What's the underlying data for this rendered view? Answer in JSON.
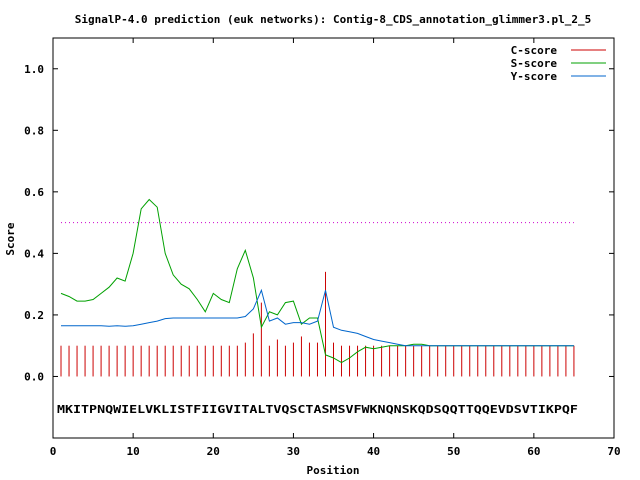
{
  "chart_data": {
    "type": "line",
    "title": "SignalP-4.0 prediction (euk networks): Contig-8_CDS_annotation_glimmer3.pl_2_5",
    "xlabel": "Position",
    "ylabel": "Score",
    "xlim": [
      0,
      70
    ],
    "ylim": [
      -0.2,
      1.1
    ],
    "xticks": [
      0,
      10,
      20,
      30,
      40,
      50,
      60,
      70
    ],
    "xtick_labels": [
      "0",
      "10",
      "20",
      "30",
      "40",
      "50",
      "60",
      "70"
    ],
    "yticks": [
      0.0,
      0.2,
      0.4,
      0.6,
      0.8,
      1.0
    ],
    "ytick_labels": [
      "0.0",
      "0.2",
      "0.4",
      "0.6",
      "0.8",
      "1.0"
    ],
    "grid": false,
    "legend_position": "top-right",
    "threshold": 0.5,
    "sequence": "MKITPNQWIELVKLISTFIIGVITALTVQSCTASMSVFWKNQNSKQDSQQTTQQEVDSVTIKPQF",
    "x": [
      1,
      2,
      3,
      4,
      5,
      6,
      7,
      8,
      9,
      10,
      11,
      12,
      13,
      14,
      15,
      16,
      17,
      18,
      19,
      20,
      21,
      22,
      23,
      24,
      25,
      26,
      27,
      28,
      29,
      30,
      31,
      32,
      33,
      34,
      35,
      36,
      37,
      38,
      39,
      40,
      41,
      42,
      43,
      44,
      45,
      46,
      47,
      48,
      49,
      50,
      51,
      52,
      53,
      54,
      55,
      56,
      57,
      58,
      59,
      60,
      61,
      62,
      63,
      64,
      65
    ],
    "series": [
      {
        "name": "C-score",
        "color": "#cc0000",
        "style": "impulses",
        "values": [
          0.1,
          0.1,
          0.1,
          0.1,
          0.1,
          0.1,
          0.1,
          0.1,
          0.1,
          0.1,
          0.1,
          0.1,
          0.1,
          0.1,
          0.1,
          0.1,
          0.1,
          0.1,
          0.1,
          0.1,
          0.1,
          0.1,
          0.1,
          0.11,
          0.14,
          0.24,
          0.1,
          0.12,
          0.1,
          0.11,
          0.13,
          0.11,
          0.11,
          0.34,
          0.11,
          0.1,
          0.1,
          0.1,
          0.1,
          0.1,
          0.1,
          0.1,
          0.1,
          0.1,
          0.1,
          0.1,
          0.1,
          0.1,
          0.1,
          0.1,
          0.1,
          0.1,
          0.1,
          0.1,
          0.1,
          0.1,
          0.1,
          0.1,
          0.1,
          0.1,
          0.1,
          0.1,
          0.1,
          0.1,
          0.1
        ]
      },
      {
        "name": "S-score",
        "color": "#00a000",
        "style": "lines",
        "values": [
          0.27,
          0.26,
          0.245,
          0.245,
          0.25,
          0.27,
          0.29,
          0.32,
          0.31,
          0.4,
          0.545,
          0.575,
          0.55,
          0.4,
          0.33,
          0.3,
          0.285,
          0.25,
          0.21,
          0.27,
          0.25,
          0.24,
          0.35,
          0.41,
          0.32,
          0.16,
          0.21,
          0.2,
          0.24,
          0.245,
          0.17,
          0.19,
          0.19,
          0.07,
          0.06,
          0.045,
          0.06,
          0.08,
          0.095,
          0.09,
          0.095,
          0.1,
          0.1,
          0.1,
          0.105,
          0.105,
          0.1,
          0.1,
          0.1,
          0.1,
          0.1,
          0.1,
          0.1,
          0.1,
          0.1,
          0.1,
          0.1,
          0.1,
          0.1,
          0.1,
          0.1,
          0.1,
          0.1,
          0.1,
          0.1
        ]
      },
      {
        "name": "Y-score",
        "color": "#0066cc",
        "style": "lines",
        "values": [
          0.165,
          0.165,
          0.165,
          0.165,
          0.165,
          0.165,
          0.163,
          0.165,
          0.163,
          0.165,
          0.17,
          0.175,
          0.18,
          0.188,
          0.19,
          0.19,
          0.19,
          0.19,
          0.19,
          0.19,
          0.19,
          0.19,
          0.19,
          0.195,
          0.22,
          0.28,
          0.18,
          0.19,
          0.17,
          0.175,
          0.175,
          0.17,
          0.18,
          0.28,
          0.16,
          0.15,
          0.145,
          0.14,
          0.13,
          0.12,
          0.115,
          0.11,
          0.105,
          0.1,
          0.1,
          0.1,
          0.1,
          0.1,
          0.1,
          0.1,
          0.1,
          0.1,
          0.1,
          0.1,
          0.1,
          0.1,
          0.1,
          0.1,
          0.1,
          0.1,
          0.1,
          0.1,
          0.1,
          0.1,
          0.1
        ]
      }
    ]
  },
  "threshold_color": "#cc00cc"
}
